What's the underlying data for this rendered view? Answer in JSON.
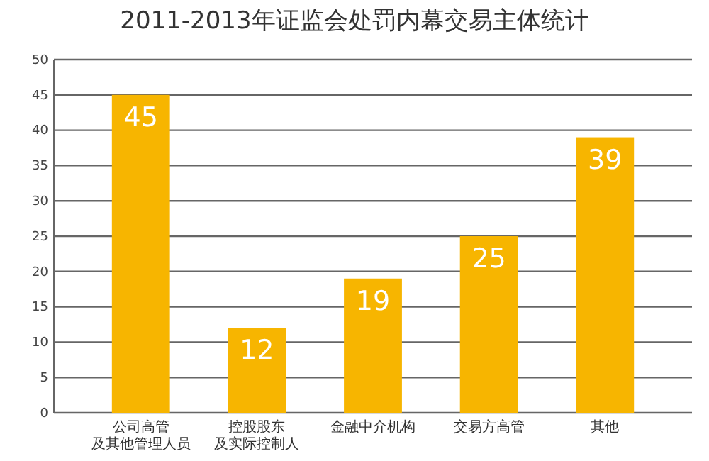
{
  "chart_data": {
    "type": "bar",
    "title": "2011-2013年证监会处罚内幕交易主体统计",
    "categories": [
      "公司高管及其他管理人员",
      "控股股东及实际控制人",
      "金融中介机构",
      "交易方高管",
      "其他"
    ],
    "values": [
      45,
      12,
      19,
      25,
      39
    ],
    "color": "#f7b500",
    "data_labels": true,
    "ylim": [
      0,
      50
    ],
    "yticks": [
      0,
      5,
      10,
      15,
      20,
      25,
      30,
      35,
      40,
      45,
      50
    ],
    "grid": "y"
  }
}
